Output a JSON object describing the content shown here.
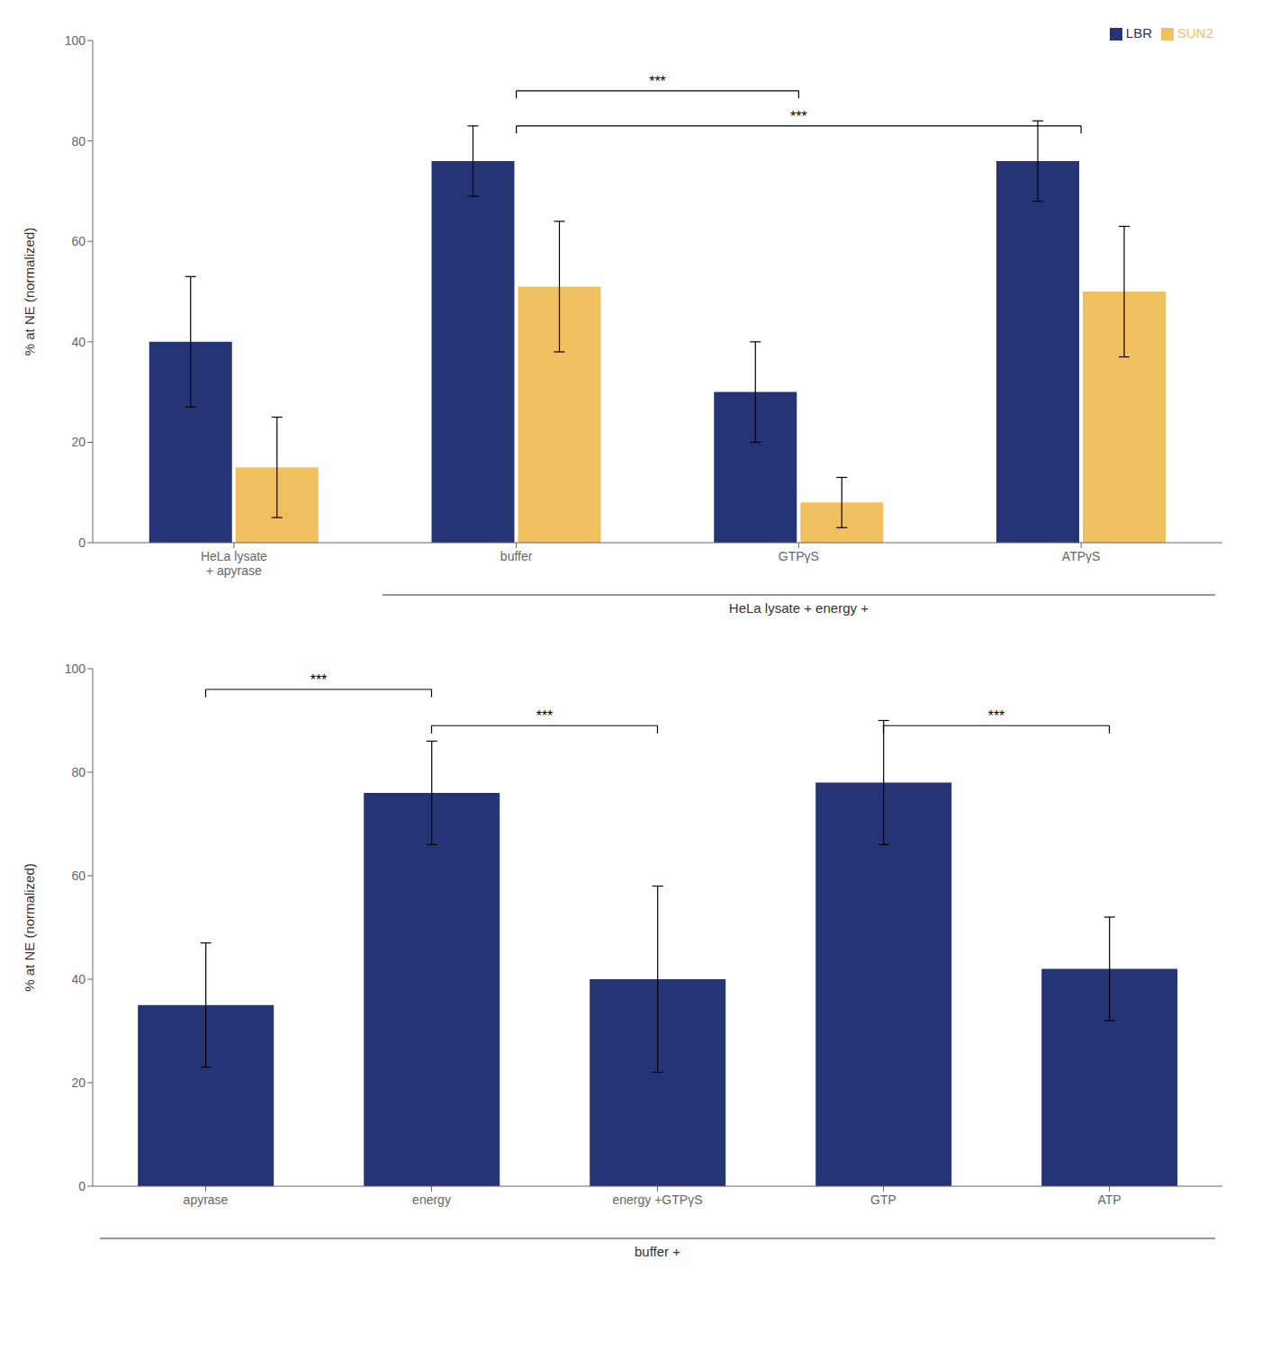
{
  "chart_data": [
    {
      "type": "bar",
      "categories": [
        "HeLa lysate\n+ apyrase",
        "buffer",
        "GTPγS",
        "ATPγS"
      ],
      "series": [
        {
          "name": "LBR",
          "color": "#253474",
          "values": [
            40,
            76,
            30,
            76
          ],
          "errors": [
            13,
            7,
            10,
            8
          ]
        },
        {
          "name": "SUN2",
          "color": "#f0c060",
          "values": [
            15,
            51,
            8,
            50
          ],
          "errors": [
            10,
            13,
            5,
            13
          ]
        }
      ],
      "ylabel": "% at NE (normalized)",
      "ylim": [
        0,
        100
      ],
      "yticks": [
        0,
        20,
        40,
        60,
        80,
        100
      ],
      "grid": false,
      "legend": "upper right",
      "annotations": [
        {
          "text": "***",
          "x1": "buffer",
          "x2": "GTPγS",
          "y": 90
        },
        {
          "text": "***",
          "x1": "buffer",
          "x2": "ATPγS",
          "y": 83
        },
        {
          "text": "HeLa lysate + energy +",
          "x1": "buffer",
          "x2": "ATPγS"
        }
      ]
    },
    {
      "type": "bar",
      "categories": [
        "apyrase",
        "energy",
        "energy +GTPγS",
        "GTP",
        "ATP"
      ],
      "values": [
        35,
        76,
        40,
        78,
        42
      ],
      "errors": [
        12,
        10,
        18,
        12,
        10
      ],
      "color": "#253474",
      "ylabel": "% at NE (normalized)",
      "ylim": [
        0,
        100
      ],
      "yticks": [
        0,
        20,
        40,
        60,
        80,
        100
      ],
      "grid": false,
      "annotations": [
        {
          "text": "***",
          "x1": "apyrase",
          "x2": "energy",
          "y": 96
        },
        {
          "text": "***",
          "x1": "energy",
          "x2": "energy +GTPγS",
          "y": 89
        },
        {
          "text": "***",
          "x1": "GTP",
          "x2": "ATP",
          "y": 89
        },
        {
          "text": "buffer +",
          "x1": "apyrase",
          "x2": "ATP"
        }
      ]
    }
  ]
}
